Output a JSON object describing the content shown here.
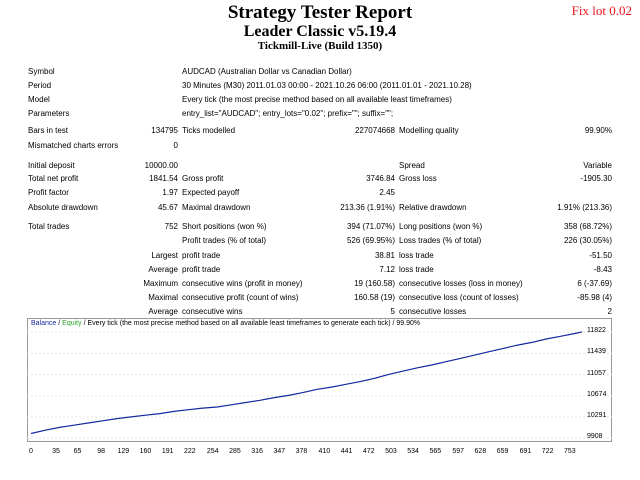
{
  "header": {
    "title": "Strategy Tester Report",
    "ea": "Leader Classic v5.19.4",
    "server": "Tickmill-Live (Build 1350)",
    "tag": "Fix lot 0.02"
  },
  "info": {
    "symbol_label": "Symbol",
    "symbol": "AUDCAD (Australian Dollar vs Canadian Dollar)",
    "period_label": "Period",
    "period": "30 Minutes (M30) 2011.01.03 00:00 - 2021.10.26 06:00 (2011.01.01 - 2021.10.28)",
    "model_label": "Model",
    "model": "Every tick (the most precise method based on all available least timeframes)",
    "params_label": "Parameters",
    "params": "entry_list=\"AUDCAD\"; entry_lots=\"0.02\"; prefix=\"\"; suffix=\"\";"
  },
  "stats": {
    "bars_label": "Bars in test",
    "bars": "134795",
    "ticks_label": "Ticks modelled",
    "ticks": "227074668",
    "mq_label": "Modelling quality",
    "mq": "99.90%",
    "mce_label": "Mismatched charts errors",
    "mce": "0",
    "deposit_label": "Initial deposit",
    "deposit": "10000.00",
    "spread_label": "Spread",
    "spread": "Variable",
    "np_label": "Total net profit",
    "np": "1841.54",
    "gp_label": "Gross profit",
    "gp": "3746.84",
    "gl_label": "Gross loss",
    "gl": "-1905.30",
    "pf_label": "Profit factor",
    "pf": "1.97",
    "ep_label": "Expected payoff",
    "ep": "2.45",
    "ad_label": "Absolute drawdown",
    "ad": "45.67",
    "md_label": "Maximal drawdown",
    "md": "213.36 (1.91%)",
    "rd_label": "Relative drawdown",
    "rd": "1.91% (213.36)",
    "tt_label": "Total trades",
    "tt": "752",
    "sp_label": "Short positions (won %)",
    "sp": "394 (71.07%)",
    "lp_label": "Long positions (won %)",
    "lp": "358 (68.72%)",
    "pt_label": "Profit trades (% of total)",
    "pt": "526 (69.95%)",
    "lt_label": "Loss trades (% of total)",
    "lt": "226 (30.05%)",
    "largest": "Largest",
    "profit_trade": "profit trade",
    "lpt": "38.81",
    "loss_trade": "loss trade",
    "llt": "-51.50",
    "average": "Average",
    "apt": "7.12",
    "alt": "-8.43",
    "maximum": "Maximum",
    "mcw_label": "consecutive wins (profit in money)",
    "mcw": "19 (160.58)",
    "mcl_label": "consecutive losses (loss in money)",
    "mcl": "6 (-37.69)",
    "maximal": "Maximal",
    "mcp_label": "consecutive profit (count of wins)",
    "mcp": "160.58 (19)",
    "mcll_label": "consecutive loss (count of losses)",
    "mcll": "-85.98 (4)",
    "acw_label": "consecutive wins",
    "acw": "5",
    "acl_label": "consecutive losses",
    "acl": "2"
  },
  "legend": {
    "balance": "Balance",
    "sep": "/",
    "equity": "Equity",
    "rest": "/ Every tick (the most precise method based on all available least timeframes to generate each tick) / 99.90%"
  },
  "colors": {
    "balance": "#1428a0",
    "equity": "#2aa02a",
    "tag": "#e8161b"
  },
  "chart_data": {
    "type": "line",
    "x_ticks": [
      "0",
      "35",
      "65",
      "98",
      "129",
      "160",
      "191",
      "222",
      "254",
      "285",
      "316",
      "347",
      "378",
      "410",
      "441",
      "472",
      "503",
      "534",
      "565",
      "597",
      "628",
      "659",
      "691",
      "722",
      "753"
    ],
    "y_ticks": [
      "11822",
      "11439",
      "11057",
      "10674",
      "10291",
      "9908"
    ],
    "xlim": [
      0,
      770
    ],
    "ylim": [
      9908,
      11900
    ],
    "series": [
      {
        "name": "Balance",
        "x": [
          0,
          20,
          40,
          60,
          80,
          100,
          120,
          140,
          160,
          180,
          200,
          220,
          240,
          260,
          280,
          300,
          320,
          340,
          360,
          380,
          400,
          420,
          440,
          460,
          480,
          500,
          520,
          540,
          560,
          580,
          600,
          620,
          640,
          660,
          680,
          700,
          720,
          740,
          760,
          770
        ],
        "values": [
          9990,
          10050,
          10100,
          10140,
          10180,
          10220,
          10260,
          10290,
          10320,
          10350,
          10390,
          10420,
          10450,
          10470,
          10510,
          10550,
          10590,
          10640,
          10680,
          10730,
          10790,
          10830,
          10880,
          10930,
          10990,
          11060,
          11120,
          11180,
          11230,
          11290,
          11350,
          11410,
          11470,
          11530,
          11590,
          11640,
          11700,
          11750,
          11800,
          11830
        ]
      }
    ]
  }
}
